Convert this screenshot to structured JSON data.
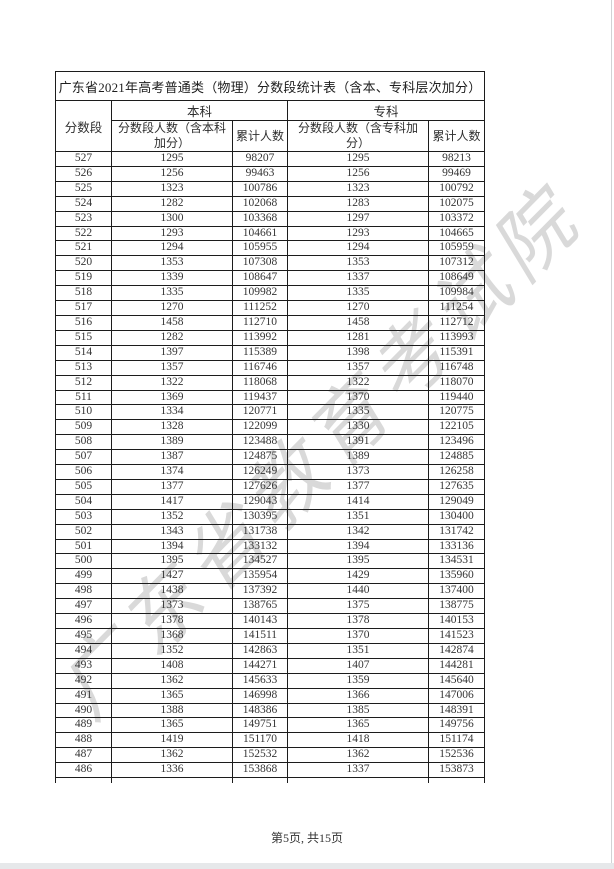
{
  "page": {
    "watermark": "广东省教育考试院",
    "footer": "第5页, 共15页"
  },
  "table": {
    "title": "广东省2021年高考普通类（物理）分数段统计表（含本、专科层次加分）",
    "headers": {
      "score_segment": "分数段",
      "undergraduate_group": "本科",
      "college_group": "专科",
      "ug_segment_count": "分数段人数（含本科加分）",
      "ug_cumulative": "累计人数",
      "col_segment_count": "分数段人数（含专科加分）",
      "col_cumulative": "累计人数"
    },
    "rows": [
      [
        527,
        1295,
        98207,
        1295,
        98213
      ],
      [
        526,
        1256,
        99463,
        1256,
        99469
      ],
      [
        525,
        1323,
        100786,
        1323,
        100792
      ],
      [
        524,
        1282,
        102068,
        1283,
        102075
      ],
      [
        523,
        1300,
        103368,
        1297,
        103372
      ],
      [
        522,
        1293,
        104661,
        1293,
        104665
      ],
      [
        521,
        1294,
        105955,
        1294,
        105959
      ],
      [
        520,
        1353,
        107308,
        1353,
        107312
      ],
      [
        519,
        1339,
        108647,
        1337,
        108649
      ],
      [
        518,
        1335,
        109982,
        1335,
        109984
      ],
      [
        517,
        1270,
        111252,
        1270,
        111254
      ],
      [
        516,
        1458,
        112710,
        1458,
        112712
      ],
      [
        515,
        1282,
        113992,
        1281,
        113993
      ],
      [
        514,
        1397,
        115389,
        1398,
        115391
      ],
      [
        513,
        1357,
        116746,
        1357,
        116748
      ],
      [
        512,
        1322,
        118068,
        1322,
        118070
      ],
      [
        511,
        1369,
        119437,
        1370,
        119440
      ],
      [
        510,
        1334,
        120771,
        1335,
        120775
      ],
      [
        509,
        1328,
        122099,
        1330,
        122105
      ],
      [
        508,
        1389,
        123488,
        1391,
        123496
      ],
      [
        507,
        1387,
        124875,
        1389,
        124885
      ],
      [
        506,
        1374,
        126249,
        1373,
        126258
      ],
      [
        505,
        1377,
        127626,
        1377,
        127635
      ],
      [
        504,
        1417,
        129043,
        1414,
        129049
      ],
      [
        503,
        1352,
        130395,
        1351,
        130400
      ],
      [
        502,
        1343,
        131738,
        1342,
        131742
      ],
      [
        501,
        1394,
        133132,
        1394,
        133136
      ],
      [
        500,
        1395,
        134527,
        1395,
        134531
      ],
      [
        499,
        1427,
        135954,
        1429,
        135960
      ],
      [
        498,
        1438,
        137392,
        1440,
        137400
      ],
      [
        497,
        1373,
        138765,
        1375,
        138775
      ],
      [
        496,
        1378,
        140143,
        1378,
        140153
      ],
      [
        495,
        1368,
        141511,
        1370,
        141523
      ],
      [
        494,
        1352,
        142863,
        1351,
        142874
      ],
      [
        493,
        1408,
        144271,
        1407,
        144281
      ],
      [
        492,
        1362,
        145633,
        1359,
        145640
      ],
      [
        491,
        1365,
        146998,
        1366,
        147006
      ],
      [
        490,
        1388,
        148386,
        1385,
        148391
      ],
      [
        489,
        1365,
        149751,
        1365,
        149756
      ],
      [
        488,
        1419,
        151170,
        1418,
        151174
      ],
      [
        487,
        1362,
        152532,
        1362,
        152536
      ],
      [
        486,
        1336,
        153868,
        1337,
        153873
      ]
    ]
  }
}
